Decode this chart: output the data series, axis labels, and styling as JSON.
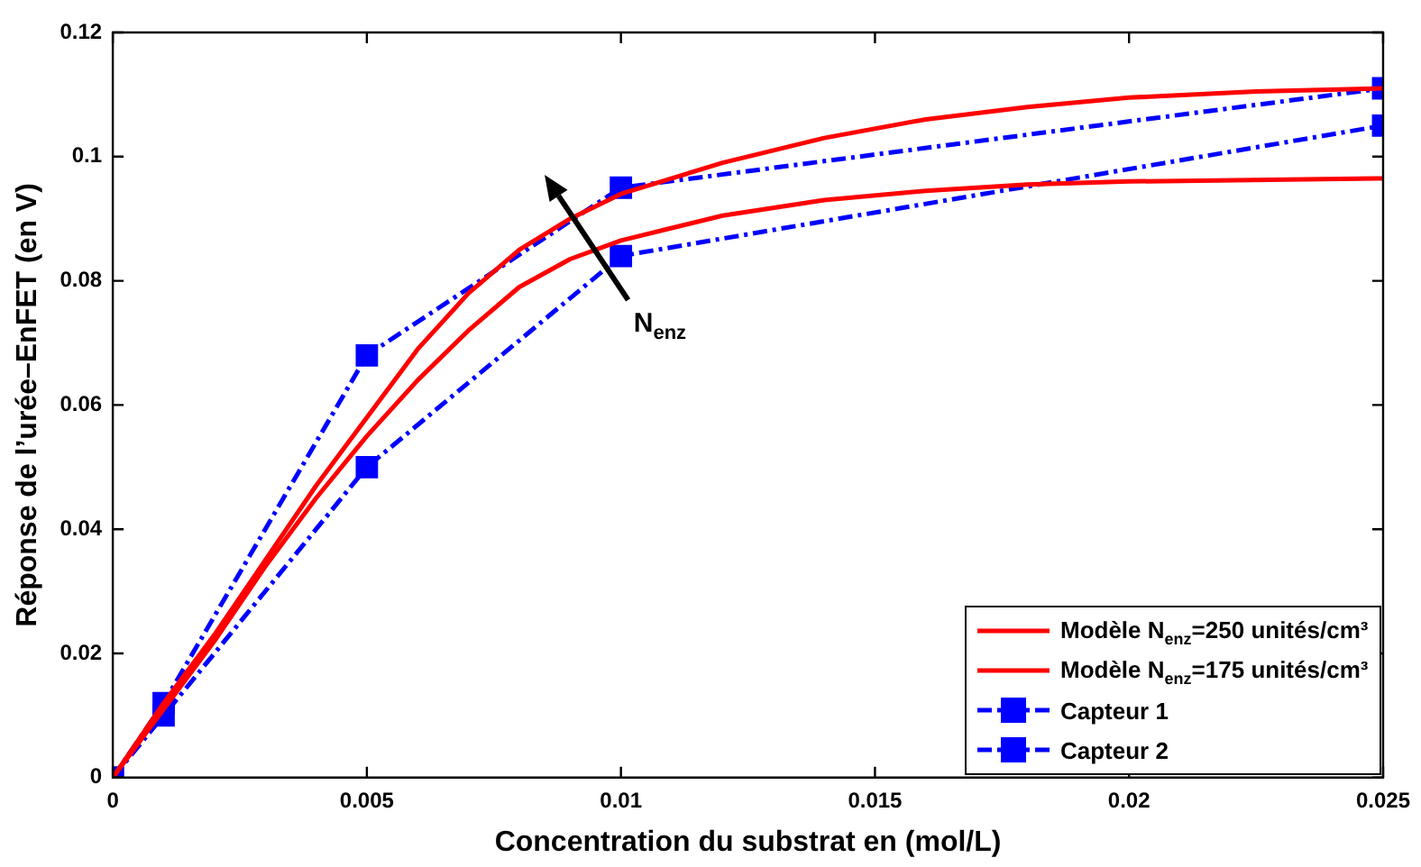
{
  "chart_data": {
    "type": "line",
    "xlabel": "Concentration du substrat en (mol/L)",
    "ylabel": "Réponse de l’urée–EnFET (en V)",
    "xlim": [
      0,
      0.025
    ],
    "xticks": [
      0,
      0.005,
      0.01,
      0.015,
      0.02,
      0.025
    ],
    "ylim": [
      0,
      0.12
    ],
    "yticks": [
      0,
      0.02,
      0.04,
      0.06,
      0.08,
      0.1,
      0.12
    ],
    "legend": "bottom right",
    "annotations": [
      "N$_{enz}$"
    ],
    "series": [
      {
        "name": "Modèle N$_{enz}$=250 unités/cm³",
        "color": "#ff0000",
        "marker": "none",
        "line_style": "solid",
        "x": [
          0,
          0.001,
          0.002,
          0.003,
          0.004,
          0.005,
          0.006,
          0.007,
          0.008,
          0.009,
          0.01,
          0.012,
          0.014,
          0.016,
          0.018,
          0.02,
          0.0225,
          0.025
        ],
        "values": [
          0,
          0.012,
          0.023,
          0.035,
          0.047,
          0.058,
          0.069,
          0.078,
          0.085,
          0.09,
          0.094,
          0.099,
          0.103,
          0.106,
          0.108,
          0.1095,
          0.1105,
          0.111
        ]
      },
      {
        "name": "Modèle N$_{enz}$=175 unités/cm³",
        "color": "#ff0000",
        "marker": "none",
        "line_style": "solid",
        "x": [
          0,
          0.001,
          0.002,
          0.003,
          0.004,
          0.005,
          0.006,
          0.007,
          0.008,
          0.009,
          0.01,
          0.011,
          0.012,
          0.014,
          0.016,
          0.018,
          0.02,
          0.025
        ],
        "values": [
          0,
          0.011,
          0.022,
          0.034,
          0.045,
          0.055,
          0.064,
          0.072,
          0.079,
          0.0835,
          0.0865,
          0.0885,
          0.0905,
          0.093,
          0.0945,
          0.0955,
          0.096,
          0.0965
        ]
      },
      {
        "name": "Capteur 1",
        "color": "#0000ff",
        "marker": "square",
        "line_style": "dashed",
        "x": [
          0,
          0.001,
          0.005,
          0.01,
          0.025
        ],
        "values": [
          0,
          0.012,
          0.068,
          0.095,
          0.111
        ]
      },
      {
        "name": "Capteur 2",
        "color": "#0000ff",
        "marker": "square",
        "line_style": "dashed",
        "x": [
          0,
          0.001,
          0.005,
          0.01,
          0.025
        ],
        "values": [
          0,
          0.01,
          0.05,
          0.084,
          0.105
        ]
      }
    ]
  }
}
